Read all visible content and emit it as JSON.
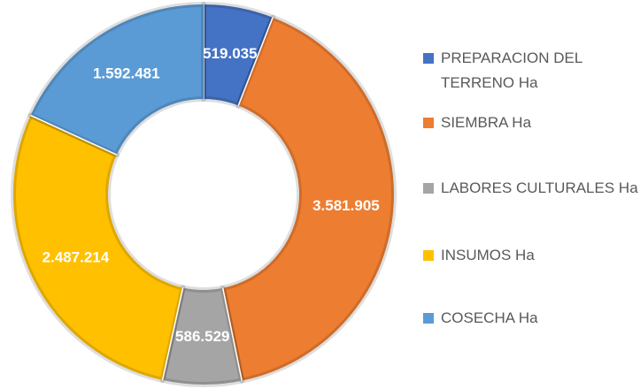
{
  "chart_data": {
    "type": "donut",
    "categories": [
      "PREPARACION DEL TERRENO Ha",
      "SIEMBRA Ha",
      "LABORES CULTURALES Ha",
      "INSUMOS Ha",
      "COSECHA Ha"
    ],
    "values": [
      519035,
      3581905,
      586529,
      2487214,
      1592481
    ],
    "value_labels": [
      "519.035",
      "3.581.905",
      "586.529",
      "2.487.214",
      "1.592.481"
    ],
    "colors": [
      "#4472c4",
      "#ed7d31",
      "#a5a5a5",
      "#ffc000",
      "#5b9bd5"
    ],
    "legend": "right"
  }
}
